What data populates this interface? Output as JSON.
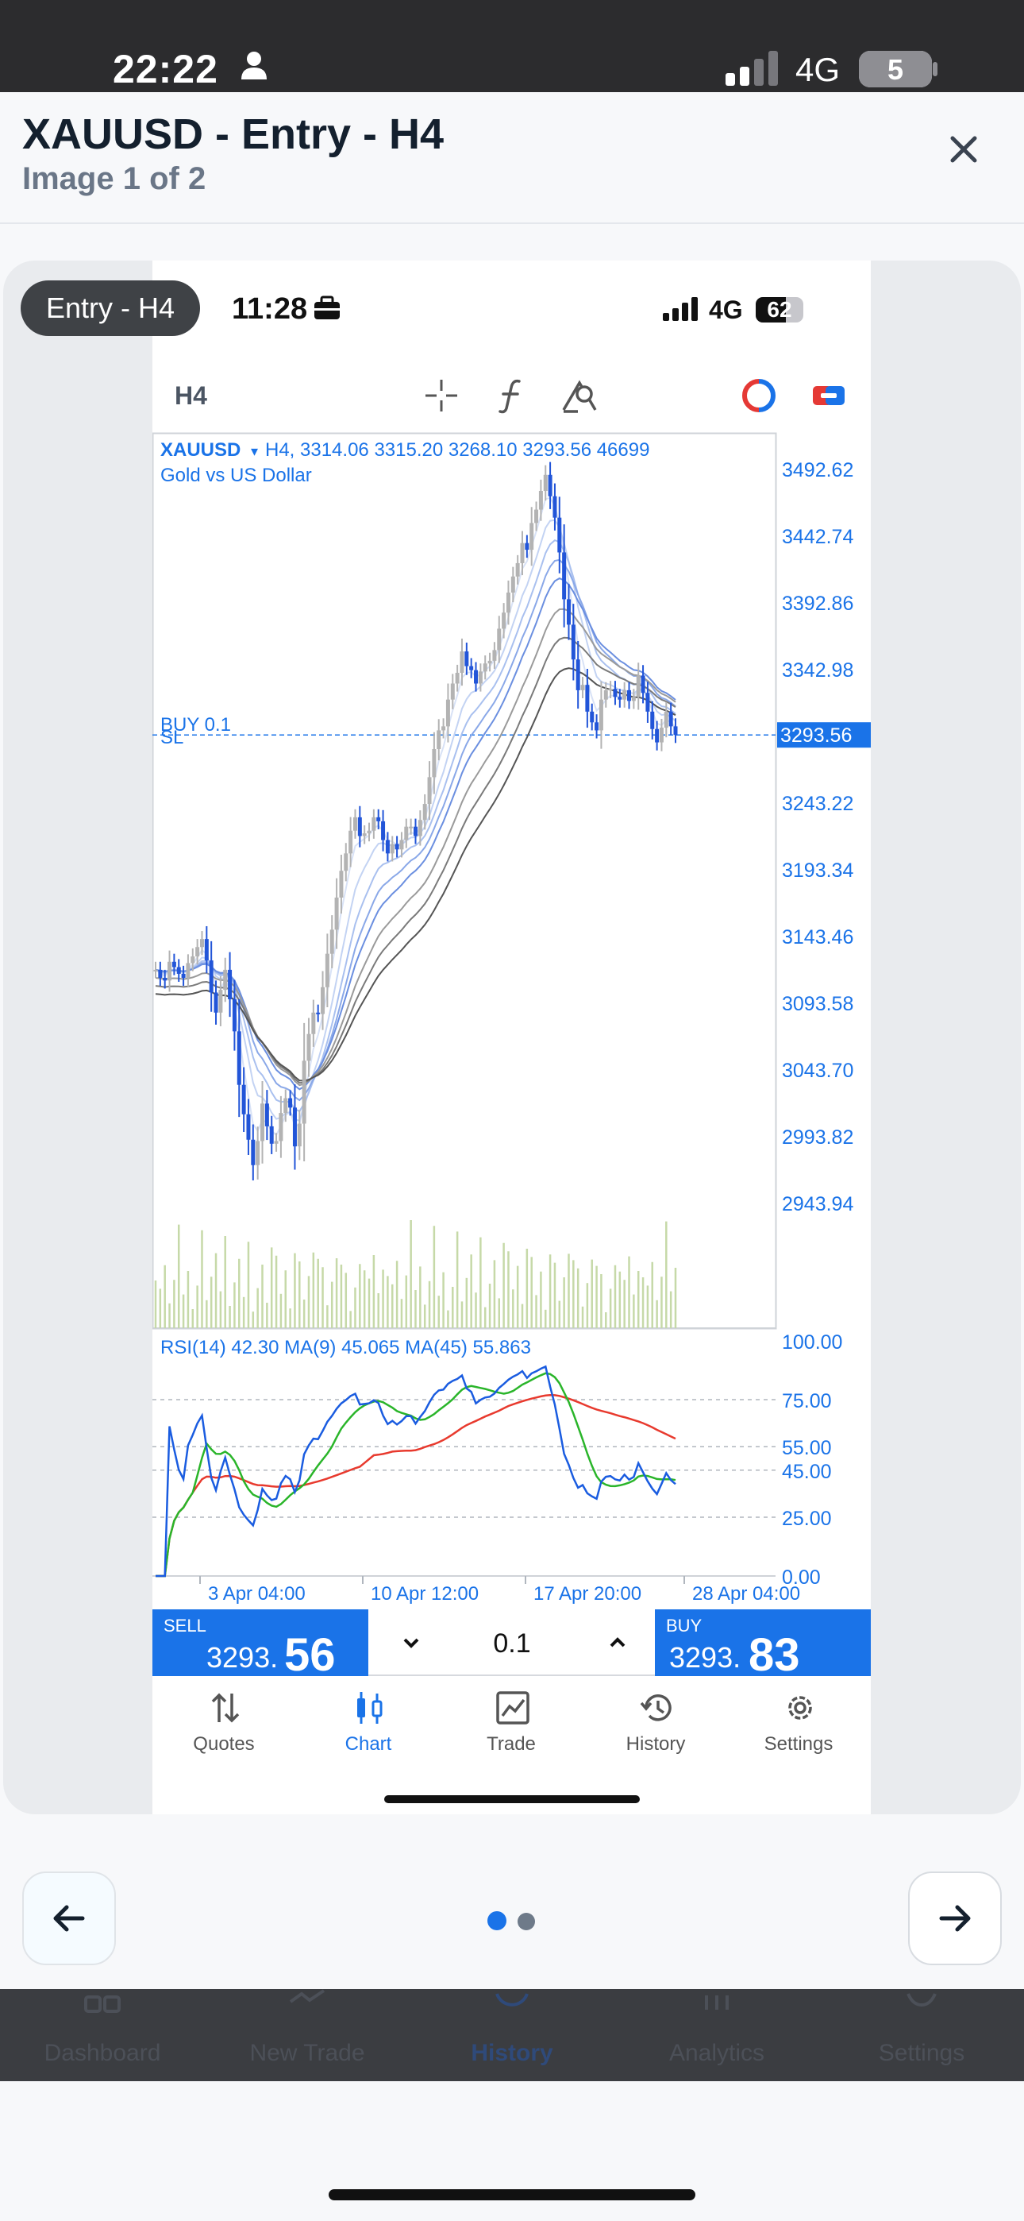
{
  "outer_status": {
    "time": "22:22",
    "network": "4G",
    "battery": "5"
  },
  "header": {
    "title": "XAUUSD - Entry - H4",
    "subtitle": "Image 1 of 2"
  },
  "image": {
    "tag": "Entry - H4",
    "status": {
      "time": "11:28",
      "network": "4G",
      "battery": "62"
    },
    "toolbar": {
      "timeframe": "H4"
    },
    "chart_data": {
      "type": "candlestick",
      "symbol": "XAUUSD",
      "info_line": "H4, 3314.06 3315.20 3268.10 3293.56 46699",
      "description": "Gold vs US Dollar",
      "order_label": "BUY 0.1",
      "sl_label": "SL",
      "current_price": "3293.56",
      "price_ticks": [
        "3492.62",
        "3442.74",
        "3392.86",
        "3342.98",
        "3243.22",
        "3193.34",
        "3143.46",
        "3093.58",
        "3043.70",
        "2993.82",
        "2943.94"
      ],
      "ylim": [
        2943.94,
        3492.62
      ],
      "time_labels": [
        "3 Apr 04:00",
        "10 Apr 12:00",
        "17 Apr 20:00",
        "28 Apr 04:00"
      ],
      "closes": [
        3118,
        3112,
        3110,
        3124,
        3120,
        3115,
        3112,
        3123,
        3128,
        3135,
        3141,
        3125,
        3101,
        3086,
        3103,
        3118,
        3096,
        3072,
        3032,
        3010,
        2991,
        2972,
        2990,
        3018,
        3001,
        2988,
        2990,
        3011,
        3022,
        3015,
        2986,
        3003,
        3050,
        3070,
        3086,
        3085,
        3105,
        3130,
        3148,
        3172,
        3192,
        3205,
        3222,
        3232,
        3218,
        3220,
        3222,
        3232,
        3229,
        3215,
        3205,
        3212,
        3208,
        3215,
        3225,
        3225,
        3218,
        3230,
        3242,
        3262,
        3283,
        3297,
        3300,
        3320,
        3332,
        3340,
        3356,
        3345,
        3342,
        3332,
        3341,
        3347,
        3349,
        3357,
        3373,
        3385,
        3400,
        3412,
        3422,
        3437,
        3432,
        3452,
        3462,
        3476,
        3488,
        3472,
        3456,
        3430,
        3395,
        3376,
        3350,
        3327,
        3331,
        3311,
        3303,
        3297,
        3320,
        3327,
        3328,
        3322,
        3320,
        3327,
        3319,
        3322,
        3338,
        3325,
        3311,
        3298,
        3288,
        3299,
        3311,
        3300,
        3293.56
      ],
      "rsi": {
        "label": "RSI(14) 42.30 MA(9) 45.065 MA(45) 55.863",
        "ticks": [
          "100.00",
          "75.00",
          "55.00",
          "45.00",
          "25.00",
          "0.00"
        ],
        "levels": [
          75,
          55,
          45,
          25
        ]
      }
    },
    "trade_bar": {
      "sell_label": "SELL",
      "sell_main": "3293.",
      "sell_big": "56",
      "lot": "0.1",
      "buy_label": "BUY",
      "buy_main": "3293.",
      "buy_big": "83"
    },
    "tabs": [
      {
        "label": "Quotes",
        "icon": "quotes-icon"
      },
      {
        "label": "Chart",
        "icon": "chart-icon"
      },
      {
        "label": "Trade",
        "icon": "trade-icon"
      },
      {
        "label": "History",
        "icon": "history-icon"
      },
      {
        "label": "Settings",
        "icon": "settings-icon"
      }
    ],
    "active_tab": "Chart"
  },
  "pager": {
    "current": 1,
    "total": 2
  },
  "bottom_nav": [
    {
      "label": "Dashboard",
      "icon": "dashboard-icon"
    },
    {
      "label": "New Trade",
      "icon": "new-trade-icon"
    },
    {
      "label": "History",
      "icon": "history-icon"
    },
    {
      "label": "Analytics",
      "icon": "analytics-icon"
    },
    {
      "label": "Settings",
      "icon": "settings-icon"
    }
  ],
  "bottom_nav_active": "History",
  "colors": {
    "accent": "#1a73e8",
    "bear": "#2255d8",
    "bull": "#b3b3b3",
    "rsi": "#1a5ce0",
    "ma9": "#2ab52a",
    "ma45": "#e83a2e"
  }
}
